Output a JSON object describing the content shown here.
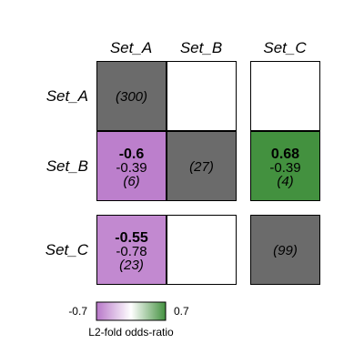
{
  "chart_data": {
    "type": "heatmap",
    "col_labels": [
      "Set_A",
      "Set_B",
      "Set_C"
    ],
    "row_labels": [
      "Set_A",
      "Set_B",
      "Set_C"
    ],
    "cells": [
      {
        "row": "Set_A",
        "col": "Set_A",
        "kind": "diagonal",
        "count": "(300)"
      },
      {
        "row": "Set_A",
        "col": "Set_B",
        "kind": "empty"
      },
      {
        "row": "Set_A",
        "col": "Set_C",
        "kind": "empty"
      },
      {
        "row": "Set_B",
        "col": "Set_A",
        "kind": "value",
        "value": -0.6,
        "value_label": "-0.6",
        "secondary": -0.39,
        "secondary_label": "-0.39",
        "count": "(6)"
      },
      {
        "row": "Set_B",
        "col": "Set_B",
        "kind": "diagonal",
        "count": "(27)"
      },
      {
        "row": "Set_B",
        "col": "Set_C",
        "kind": "value",
        "value": 0.68,
        "value_label": "0.68",
        "secondary": -0.39,
        "secondary_label": "-0.39",
        "count": "(4)"
      },
      {
        "row": "Set_C",
        "col": "Set_A",
        "kind": "value",
        "value": -0.55,
        "value_label": "-0.55",
        "secondary": -0.78,
        "secondary_label": "-0.78",
        "count": "(23)"
      },
      {
        "row": "Set_C",
        "col": "Set_B",
        "kind": "empty"
      },
      {
        "row": "Set_C",
        "col": "Set_C",
        "kind": "diagonal",
        "count": "(99)"
      }
    ],
    "color_scale": {
      "min": -0.7,
      "max": 0.7,
      "min_label": "-0.7",
      "max_label": "0.7",
      "low_color": "#b877c9",
      "mid_color": "#ffffff",
      "high_color": "#43913f"
    },
    "diagonal_color": "#6b6b6b",
    "legend_title": "L2-fold odds-ratio"
  }
}
